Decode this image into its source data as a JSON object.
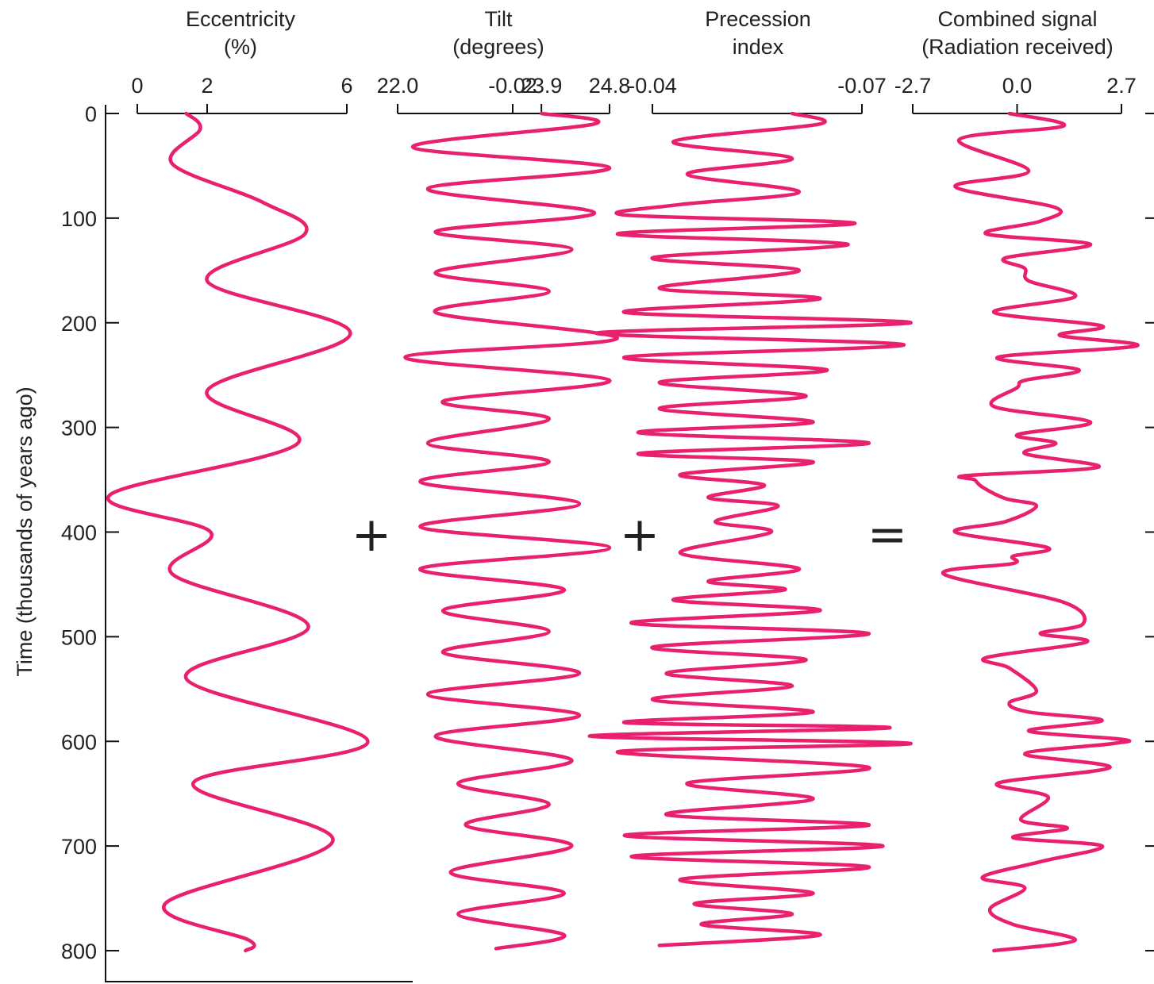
{
  "chart_data": {
    "type": "line",
    "orientation": "vertical-time",
    "y_axis": {
      "label": "Time (thousands of years ago)",
      "range": [
        0,
        800
      ],
      "ticks": [
        0,
        100,
        200,
        300,
        400,
        500,
        600,
        700,
        800
      ]
    },
    "operators": [
      "+",
      "+",
      "="
    ],
    "line_color": "#e8206e",
    "panels": [
      {
        "title_lines": [
          "Eccentricity",
          "(%)"
        ],
        "tick_labels": [
          "0",
          "2",
          "6"
        ],
        "tick_values": [
          0,
          2,
          6
        ],
        "x_range": [
          0,
          6
        ],
        "points": [
          [
            0,
            1.4
          ],
          [
            15,
            1.8
          ],
          [
            48,
            1.0
          ],
          [
            85,
            3.6
          ],
          [
            115,
            4.8
          ],
          [
            160,
            2.0
          ],
          [
            210,
            6.1
          ],
          [
            265,
            2.0
          ],
          [
            315,
            4.6
          ],
          [
            365,
            -0.8
          ],
          [
            400,
            2.1
          ],
          [
            440,
            1.0
          ],
          [
            490,
            4.9
          ],
          [
            540,
            1.4
          ],
          [
            600,
            6.6
          ],
          [
            640,
            1.6
          ],
          [
            695,
            5.6
          ],
          [
            755,
            0.8
          ],
          [
            790,
            3.2
          ],
          [
            800,
            3.1
          ]
        ]
      },
      {
        "title_lines": [
          "Tilt",
          "(degrees)"
        ],
        "tick_labels": [
          "22.0",
          "23.9",
          "24.8"
        ],
        "tick_values": [
          22.0,
          23.9,
          24.8
        ],
        "x_range": [
          22.0,
          24.8
        ],
        "points": [
          [
            0,
            23.9
          ],
          [
            10,
            24.6
          ],
          [
            32,
            22.2
          ],
          [
            52,
            24.8
          ],
          [
            72,
            22.4
          ],
          [
            95,
            24.6
          ],
          [
            113,
            22.5
          ],
          [
            130,
            24.3
          ],
          [
            152,
            22.5
          ],
          [
            170,
            24.0
          ],
          [
            190,
            22.5
          ],
          [
            215,
            24.9
          ],
          [
            233,
            22.1
          ],
          [
            255,
            24.8
          ],
          [
            275,
            22.6
          ],
          [
            292,
            24.0
          ],
          [
            315,
            22.4
          ],
          [
            333,
            24.0
          ],
          [
            352,
            22.3
          ],
          [
            373,
            24.4
          ],
          [
            395,
            22.3
          ],
          [
            415,
            24.8
          ],
          [
            435,
            22.3
          ],
          [
            455,
            24.2
          ],
          [
            475,
            22.6
          ],
          [
            495,
            24.0
          ],
          [
            515,
            22.6
          ],
          [
            535,
            24.4
          ],
          [
            555,
            22.4
          ],
          [
            575,
            24.4
          ],
          [
            595,
            22.5
          ],
          [
            618,
            24.3
          ],
          [
            640,
            22.8
          ],
          [
            660,
            24.0
          ],
          [
            680,
            22.9
          ],
          [
            700,
            24.3
          ],
          [
            725,
            22.7
          ],
          [
            745,
            24.2
          ],
          [
            765,
            22.8
          ],
          [
            785,
            24.2
          ],
          [
            798,
            23.3
          ]
        ]
      },
      {
        "title_lines": [
          "Precession",
          "index"
        ],
        "tick_labels": [
          "-0.04",
          "-0.02",
          "-0.07"
        ],
        "tick_values": [
          -0.04,
          -0.02,
          -0.07
        ],
        "x_range": [
          -0.04,
          -0.07
        ],
        "points": [
          [
            0,
            -0.06
          ],
          [
            10,
            -0.064
          ],
          [
            27,
            -0.043
          ],
          [
            43,
            -0.06
          ],
          [
            58,
            -0.045
          ],
          [
            75,
            -0.061
          ],
          [
            87,
            -0.044
          ],
          [
            97,
            -0.036
          ],
          [
            105,
            -0.069
          ],
          [
            115,
            -0.035
          ],
          [
            125,
            -0.068
          ],
          [
            138,
            -0.04
          ],
          [
            150,
            -0.061
          ],
          [
            167,
            -0.041
          ],
          [
            177,
            -0.064
          ],
          [
            190,
            -0.036
          ],
          [
            200,
            -0.077
          ],
          [
            210,
            -0.032
          ],
          [
            221,
            -0.076
          ],
          [
            233,
            -0.036
          ],
          [
            245,
            -0.065
          ],
          [
            257,
            -0.041
          ],
          [
            270,
            -0.062
          ],
          [
            282,
            -0.041
          ],
          [
            295,
            -0.063
          ],
          [
            305,
            -0.038
          ],
          [
            315,
            -0.071
          ],
          [
            325,
            -0.038
          ],
          [
            333,
            -0.063
          ],
          [
            345,
            -0.044
          ],
          [
            355,
            -0.056
          ],
          [
            367,
            -0.048
          ],
          [
            375,
            -0.058
          ],
          [
            390,
            -0.049
          ],
          [
            400,
            -0.057
          ],
          [
            420,
            -0.044
          ],
          [
            435,
            -0.061
          ],
          [
            447,
            -0.048
          ],
          [
            455,
            -0.059
          ],
          [
            465,
            -0.043
          ],
          [
            475,
            -0.064
          ],
          [
            487,
            -0.037
          ],
          [
            497,
            -0.071
          ],
          [
            510,
            -0.04
          ],
          [
            522,
            -0.062
          ],
          [
            535,
            -0.042
          ],
          [
            547,
            -0.06
          ],
          [
            560,
            -0.04
          ],
          [
            572,
            -0.063
          ],
          [
            582,
            -0.036
          ],
          [
            587,
            -0.074
          ],
          [
            595,
            -0.031
          ],
          [
            602,
            -0.077
          ],
          [
            610,
            -0.035
          ],
          [
            625,
            -0.071
          ],
          [
            640,
            -0.045
          ],
          [
            655,
            -0.063
          ],
          [
            670,
            -0.042
          ],
          [
            680,
            -0.071
          ],
          [
            690,
            -0.036
          ],
          [
            700,
            -0.073
          ],
          [
            710,
            -0.037
          ],
          [
            720,
            -0.071
          ],
          [
            732,
            -0.044
          ],
          [
            745,
            -0.063
          ],
          [
            755,
            -0.046
          ],
          [
            765,
            -0.06
          ],
          [
            775,
            -0.047
          ],
          [
            785,
            -0.064
          ],
          [
            795,
            -0.041
          ]
        ]
      },
      {
        "title_lines": [
          "Combined signal",
          "(Radiation received)"
        ],
        "tick_labels": [
          "-2.7",
          "0.0",
          "2.7"
        ],
        "tick_values": [
          -2.7,
          0.0,
          2.7
        ],
        "x_range": [
          -2.7,
          2.7
        ],
        "points": [
          [
            0,
            -0.2
          ],
          [
            12,
            1.2
          ],
          [
            25,
            -1.5
          ],
          [
            55,
            0.3
          ],
          [
            70,
            -1.6
          ],
          [
            90,
            1.0
          ],
          [
            103,
            0.6
          ],
          [
            115,
            -0.8
          ],
          [
            125,
            1.9
          ],
          [
            138,
            -0.3
          ],
          [
            148,
            0.2
          ],
          [
            160,
            0.3
          ],
          [
            175,
            1.5
          ],
          [
            190,
            -0.6
          ],
          [
            203,
            2.2
          ],
          [
            212,
            1.1
          ],
          [
            222,
            3.1
          ],
          [
            233,
            -0.5
          ],
          [
            245,
            1.6
          ],
          [
            255,
            0.2
          ],
          [
            262,
            0.0
          ],
          [
            280,
            -0.6
          ],
          [
            295,
            1.9
          ],
          [
            307,
            0.0
          ],
          [
            315,
            1.0
          ],
          [
            325,
            0.2
          ],
          [
            338,
            2.1
          ],
          [
            346,
            -1.3
          ],
          [
            350,
            -1.1
          ],
          [
            357,
            -0.9
          ],
          [
            368,
            -0.3
          ],
          [
            375,
            0.5
          ],
          [
            390,
            -0.3
          ],
          [
            400,
            -1.6
          ],
          [
            415,
            0.8
          ],
          [
            423,
            -0.1
          ],
          [
            430,
            -0.1
          ],
          [
            440,
            -1.9
          ],
          [
            467,
            1.2
          ],
          [
            488,
            1.7
          ],
          [
            497,
            0.6
          ],
          [
            505,
            1.8
          ],
          [
            520,
            -0.8
          ],
          [
            530,
            -0.2
          ],
          [
            552,
            0.5
          ],
          [
            563,
            -0.2
          ],
          [
            572,
            0.3
          ],
          [
            580,
            2.2
          ],
          [
            590,
            0.3
          ],
          [
            598,
            2.7
          ],
          [
            602,
            2.5
          ],
          [
            612,
            0.2
          ],
          [
            625,
            2.4
          ],
          [
            640,
            -0.5
          ],
          [
            653,
            0.8
          ],
          [
            675,
            0.1
          ],
          [
            683,
            1.3
          ],
          [
            692,
            -0.1
          ],
          [
            700,
            2.2
          ],
          [
            715,
            0.6
          ],
          [
            730,
            -0.9
          ],
          [
            740,
            0.2
          ],
          [
            760,
            -0.7
          ],
          [
            775,
            -0.1
          ],
          [
            790,
            1.5
          ],
          [
            800,
            -0.6
          ]
        ]
      }
    ]
  }
}
